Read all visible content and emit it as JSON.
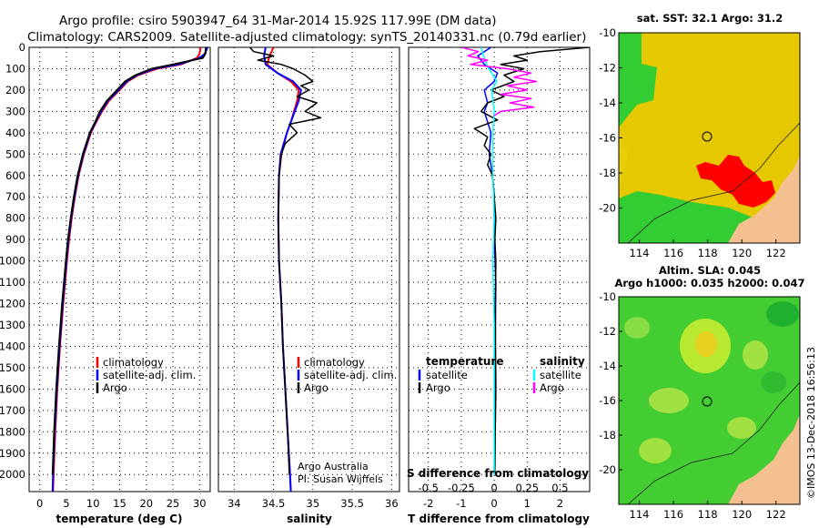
{
  "header": {
    "title_line1": "Argo profile: csiro 5903947_64 31-Mar-2014 15.92S 117.99E (DM data)",
    "title_line2": "Climatology: CARS2009. Satellite-adjusted climatology: synTS_20140331.nc (0.79d earlier)"
  },
  "colors": {
    "climatology": "#ff0000",
    "satellite": "#0000ff",
    "argo": "#000000",
    "argo_salinity": "#ff00ff",
    "satellite_salinity": "#00ffff",
    "land": "#f5c090",
    "ocean_warm": "#e6c800",
    "ocean_green": "#33cc33",
    "hot_patch": "#ff0000"
  },
  "chart_data": [
    {
      "type": "line",
      "title": "temperature profile",
      "xlabel": "temperature (deg C)",
      "ylabel": "",
      "xlim": [
        -2,
        32
      ],
      "ylim": [
        2080,
        0
      ],
      "xticks": [
        0,
        5,
        10,
        15,
        20,
        25,
        30
      ],
      "yticks": [
        0,
        100,
        200,
        300,
        400,
        500,
        600,
        700,
        800,
        900,
        1000,
        1100,
        1200,
        1300,
        1400,
        1500,
        1600,
        1700,
        1800,
        1900,
        2000
      ],
      "legend": [
        "climatology",
        "satellite-adj. clim.",
        "Argo"
      ],
      "legend_position": "center-right",
      "series": [
        {
          "name": "climatology",
          "color": "#ff0000",
          "depth": [
            0,
            30,
            50,
            80,
            100,
            130,
            160,
            200,
            250,
            300,
            350,
            400,
            500,
            600,
            700,
            800,
            900,
            1000,
            1200,
            1400,
            1600,
            1800,
            2000,
            2080
          ],
          "values": [
            30.2,
            30.0,
            29.5,
            26.5,
            22.0,
            18.5,
            16.5,
            15.0,
            13.0,
            11.7,
            10.6,
            9.6,
            8.3,
            7.3,
            6.6,
            6.0,
            5.5,
            5.1,
            4.4,
            3.8,
            3.3,
            2.9,
            2.6,
            2.5
          ]
        },
        {
          "name": "satellite-adj. clim.",
          "color": "#0000ff",
          "depth": [
            0,
            30,
            50,
            80,
            100,
            130,
            160,
            200,
            250,
            300,
            350,
            400,
            500,
            600,
            700,
            800,
            900,
            1000,
            1200,
            1400,
            1600,
            1800,
            2000,
            2080
          ],
          "values": [
            31.5,
            31.0,
            30.0,
            26.0,
            21.5,
            18.2,
            16.3,
            14.8,
            12.8,
            11.5,
            10.5,
            9.5,
            8.2,
            7.2,
            6.5,
            5.9,
            5.4,
            5.0,
            4.3,
            3.7,
            3.2,
            2.8,
            2.5,
            2.4
          ]
        },
        {
          "name": "Argo",
          "color": "#000000",
          "depth": [
            0,
            30,
            50,
            80,
            100,
            130,
            160,
            200,
            250,
            300,
            350,
            400,
            500,
            600,
            700,
            800,
            900,
            1000,
            1200,
            1400,
            1600,
            1800,
            2000
          ],
          "values": [
            31.2,
            31.1,
            30.6,
            25.0,
            21.0,
            18.0,
            16.0,
            14.5,
            12.6,
            11.3,
            10.4,
            9.4,
            8.1,
            7.1,
            6.4,
            5.8,
            5.3,
            4.9,
            4.2,
            3.6,
            3.1,
            2.7,
            2.4
          ]
        }
      ]
    },
    {
      "type": "line",
      "title": "salinity profile",
      "xlabel": "salinity",
      "ylabel": "",
      "xlim": [
        33.8,
        36.1
      ],
      "ylim": [
        2080,
        0
      ],
      "xticks": [
        34,
        34.5,
        35,
        35.5,
        36
      ],
      "xtick_labels": [
        "34",
        "34.5",
        "35",
        "35.5",
        "36"
      ],
      "legend": [
        "climatology",
        "satellite-adj. clim.",
        "Argo"
      ],
      "legend_position": "center-right",
      "annotation": [
        "Argo Australia",
        "PI: Susan Wijffels"
      ],
      "series": [
        {
          "name": "climatology",
          "color": "#ff0000",
          "depth": [
            0,
            40,
            80,
            120,
            160,
            200,
            250,
            300,
            350,
            400,
            500,
            600,
            800,
            1000,
            1200,
            1400,
            1600,
            1800,
            2000,
            2080
          ],
          "values": [
            34.5,
            34.45,
            34.42,
            34.55,
            34.72,
            34.82,
            34.8,
            34.76,
            34.72,
            34.67,
            34.6,
            34.57,
            34.56,
            34.57,
            34.6,
            34.62,
            34.65,
            34.68,
            34.71,
            34.72
          ]
        },
        {
          "name": "satellite-adj. clim.",
          "color": "#0000ff",
          "depth": [
            0,
            40,
            80,
            120,
            160,
            200,
            250,
            300,
            350,
            400,
            500,
            600,
            800,
            1000,
            1200,
            1400,
            1600,
            1800,
            2000,
            2080
          ],
          "values": [
            34.4,
            34.38,
            34.4,
            34.55,
            34.75,
            34.85,
            34.82,
            34.77,
            34.72,
            34.67,
            34.59,
            34.57,
            34.56,
            34.57,
            34.6,
            34.62,
            34.65,
            34.68,
            34.71,
            34.72
          ]
        },
        {
          "name": "Argo",
          "color": "#000000",
          "depth": [
            0,
            20,
            40,
            60,
            80,
            100,
            130,
            160,
            180,
            200,
            230,
            260,
            300,
            330,
            360,
            400,
            450,
            500,
            600,
            800,
            1000,
            1200,
            1400,
            1600,
            1800,
            2000
          ],
          "values": [
            34.2,
            34.25,
            34.5,
            34.3,
            34.6,
            34.75,
            34.9,
            35.0,
            34.85,
            34.95,
            34.8,
            35.05,
            34.9,
            35.1,
            34.7,
            34.8,
            34.65,
            34.6,
            34.57,
            34.56,
            34.57,
            34.6,
            34.62,
            34.65,
            34.68,
            34.7
          ]
        }
      ]
    },
    {
      "type": "line",
      "title": "difference from climatology",
      "xlabel": "T difference from climatology",
      "xlabel_top": "S difference from climatology",
      "xlim": [
        -2.6,
        2.9
      ],
      "ylim": [
        2080,
        0
      ],
      "xticks": [
        -2,
        -1,
        0,
        1,
        2
      ],
      "xticks_top": [
        -0.5,
        -0.25,
        0,
        0.25,
        0.5
      ],
      "xtick_top_labels": [
        "-0.5",
        "-0.25",
        "0",
        "0.25",
        "0.5"
      ],
      "legend_left_title": "temperature",
      "legend_right_title": "salinity",
      "legend": [
        "satellite",
        "Argo",
        "satellite",
        "Argo"
      ],
      "series": [
        {
          "name": "temperature satellite",
          "color": "#0000ff",
          "depth": [
            0,
            40,
            80,
            120,
            160,
            200,
            260,
            300,
            400,
            500,
            600,
            700,
            900,
            1100,
            1400,
            1700,
            2000
          ],
          "values": [
            -0.1,
            -0.5,
            -0.3,
            0.1,
            0.0,
            -0.3,
            -0.2,
            -0.3,
            -0.1,
            -0.15,
            -0.05,
            0.0,
            0.0,
            0.05,
            0.03,
            0.02,
            0.0
          ]
        },
        {
          "name": "temperature Argo",
          "color": "#000000",
          "depth": [
            0,
            20,
            40,
            60,
            80,
            100,
            130,
            160,
            200,
            230,
            260,
            300,
            340,
            380,
            420,
            460,
            500,
            550,
            600,
            700,
            800,
            900,
            1000,
            1200,
            1400,
            1600,
            1800,
            2000
          ],
          "values": [
            2.9,
            1.4,
            0.6,
            1.0,
            0.2,
            0.9,
            0.3,
            0.6,
            -0.1,
            0.3,
            -0.2,
            -0.4,
            0.1,
            -0.6,
            -0.2,
            -0.3,
            -0.1,
            -0.2,
            -0.05,
            0.0,
            0.05,
            0.02,
            0.05,
            0.03,
            0.04,
            0.05,
            0.03,
            0.02
          ]
        },
        {
          "name": "salinity satellite",
          "color": "#00ffff",
          "depth": [
            0,
            40,
            80,
            120,
            160,
            200,
            300,
            400,
            600,
            800,
            1000,
            1300,
            1600,
            2000
          ],
          "values": [
            -0.1,
            -0.08,
            -0.06,
            -0.02,
            0.02,
            -0.02,
            0.0,
            -0.01,
            -0.01,
            0.0,
            -0.01,
            0.0,
            0.0,
            0.0
          ]
        },
        {
          "name": "salinity Argo",
          "color": "#ff00ff",
          "depth": [
            0,
            20,
            40,
            60,
            80,
            100,
            120,
            140,
            160,
            180,
            200,
            220,
            240,
            260,
            280,
            300,
            320
          ],
          "values": [
            -0.25,
            -0.12,
            -0.2,
            -0.05,
            -0.18,
            0.1,
            0.28,
            0.15,
            0.32,
            0.1,
            0.25,
            0.05,
            0.28,
            0.12,
            0.3,
            0.05,
            0.0
          ]
        }
      ]
    },
    {
      "type": "heatmap",
      "title": "sat. SST: 32.1 Argo: 31.2",
      "xlim": [
        112.8,
        123.4
      ],
      "ylim": [
        -22,
        -10
      ],
      "xticks": [
        114,
        116,
        118,
        120,
        122
      ],
      "yticks": [
        -10,
        -12,
        -14,
        -16,
        -18,
        -20
      ],
      "float_position": [
        117.99,
        -15.92
      ]
    },
    {
      "type": "heatmap",
      "title": "Altim. SLA: 0.045",
      "subtitle": "Argo h1000: 0.035 h2000: 0.047",
      "xlim": [
        112.8,
        123.4
      ],
      "ylim": [
        -22,
        -10
      ],
      "xticks": [
        114,
        116,
        118,
        120,
        122
      ],
      "yticks": [
        -10,
        -12,
        -14,
        -16,
        -18,
        -20
      ],
      "float_position": [
        117.99,
        -15.92
      ]
    }
  ],
  "credit": "©IMOS 13-Dec-2018 16:56:13"
}
